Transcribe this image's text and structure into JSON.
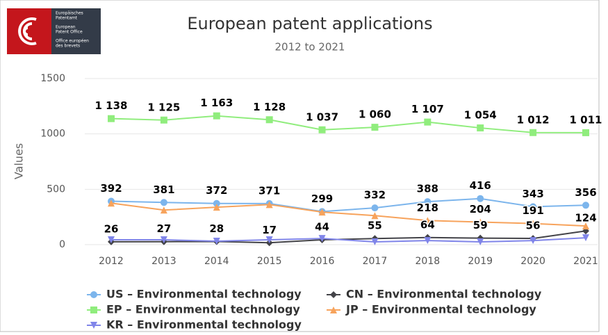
{
  "logo": {
    "lines": [
      "Europäisches",
      "Patentamt",
      "European",
      "Patent Office",
      "Office européen",
      "des brevets"
    ]
  },
  "chart_data": {
    "type": "line",
    "title": "European patent applications",
    "subtitle": "2012 to 2021",
    "y_label": "Values",
    "categories": [
      "2012",
      "2013",
      "2014",
      "2015",
      "2016",
      "2017",
      "2018",
      "2019",
      "2020",
      "2021"
    ],
    "ylim": [
      0,
      1500
    ],
    "yticks": [
      0,
      500,
      1000,
      1500
    ],
    "grid": true,
    "series": [
      {
        "name": "US – Environmental technology",
        "color": "#7cb5ec",
        "marker": "circle",
        "values": [
          392,
          381,
          372,
          371,
          299,
          332,
          388,
          416,
          343,
          356
        ]
      },
      {
        "name": "CN – Environmental technology",
        "color": "#434348",
        "marker": "diamond",
        "values": [
          26,
          27,
          28,
          17,
          44,
          55,
          64,
          59,
          56,
          124
        ]
      },
      {
        "name": "EP – Environmental technology",
        "color": "#90ed7d",
        "marker": "square",
        "values": [
          1138,
          1125,
          1163,
          1128,
          1037,
          1060,
          1107,
          1054,
          1012,
          1011
        ],
        "value_labels": [
          "1 138",
          "1 125",
          "1 163",
          "1 128",
          "1 037",
          "1 060",
          "1 107",
          "1 054",
          "1 012",
          "1 011"
        ]
      },
      {
        "name": "JP – Environmental technology",
        "color": "#f7a35c",
        "marker": "triangle",
        "values": [
          375,
          312,
          338,
          362,
          294,
          262,
          218,
          204,
          191,
          169
        ],
        "value_labels": [
          null,
          null,
          null,
          null,
          null,
          null,
          "218",
          "204",
          "191",
          null
        ]
      },
      {
        "name": "KR – Environmental technology",
        "color": "#8085e9",
        "marker": "triangle-down",
        "values": [
          44,
          44,
          31,
          44,
          56,
          25,
          37,
          25,
          37,
          62
        ],
        "value_labels": [
          null,
          null,
          null,
          null,
          null,
          null,
          null,
          null,
          null,
          null
        ]
      }
    ]
  }
}
